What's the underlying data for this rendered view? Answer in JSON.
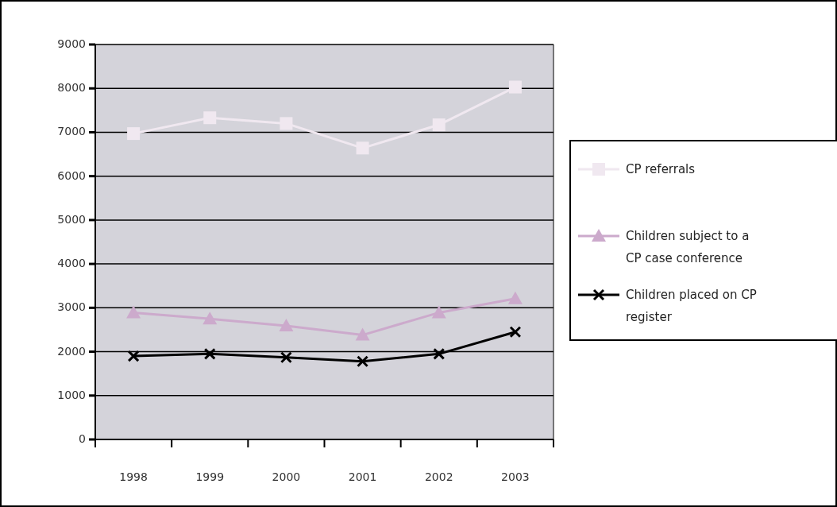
{
  "chart_data": {
    "type": "line",
    "categories": [
      "1998",
      "1999",
      "2000",
      "2001",
      "2002",
      "2003"
    ],
    "series": [
      {
        "name": "CP referrals",
        "color": "#f0e8f0",
        "marker": "square",
        "values": [
          6970,
          7330,
          7200,
          6640,
          7170,
          8030
        ]
      },
      {
        "name": "Children subject to a CP case conference",
        "color": "#ccaacc",
        "marker": "triangle",
        "values": [
          2890,
          2750,
          2590,
          2380,
          2890,
          3210
        ]
      },
      {
        "name": "Children placed on CP register",
        "color": "#000000",
        "marker": "cross",
        "values": [
          1900,
          1950,
          1870,
          1780,
          1950,
          2450
        ]
      }
    ],
    "ylim": [
      0,
      9000
    ],
    "yticks": [
      0,
      1000,
      2000,
      3000,
      4000,
      5000,
      6000,
      7000,
      8000,
      9000
    ],
    "grid": "y",
    "legend": "right"
  }
}
